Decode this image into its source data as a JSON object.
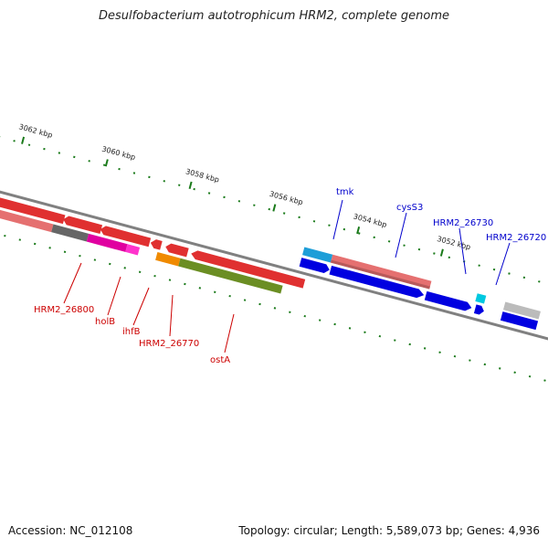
{
  "header": {
    "title": "Desulfobacterium autotrophicum HRM2, complete genome"
  },
  "footer": {
    "accession": "Accession: NC_012108",
    "stats": "Topology: circular; Length: 5,589,073 bp; Genes: 4,936"
  },
  "map": {
    "ticks": [
      "3062 kbp",
      "3060 kbp",
      "3058 kbp",
      "3056 kbp",
      "3054 kbp",
      "3052 kbp"
    ],
    "genes_forward": [
      {
        "name": "tmk",
        "color": "#1e9ed8"
      },
      {
        "name": "cysS3",
        "color": "#e57070"
      },
      {
        "name": "HRM2_26730",
        "color": "#0000e0"
      },
      {
        "name": "HRM2_26720",
        "color": "#00c8e0"
      }
    ],
    "genes_reverse": [
      {
        "name": "HRM2_26800",
        "color": "#e03030"
      },
      {
        "name": "holB",
        "color": "#e000a0"
      },
      {
        "name": "ihfB",
        "color": "#e000a0"
      },
      {
        "name": "HRM2_26770",
        "color": "#f08a00"
      },
      {
        "name": "ostA",
        "color": "#6b8e23"
      }
    ]
  }
}
